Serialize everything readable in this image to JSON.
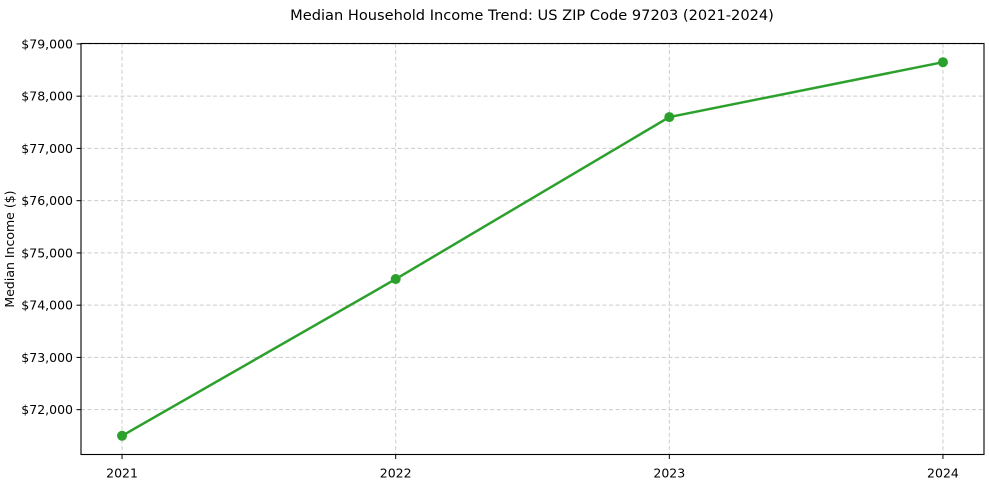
{
  "chart_data": {
    "type": "line",
    "title": "Median Household Income Trend: US ZIP Code 97203 (2021-2024)",
    "xlabel": "",
    "ylabel": "Median Income ($)",
    "x": [
      2021,
      2022,
      2023,
      2024
    ],
    "xtick_labels": [
      "2021",
      "2022",
      "2023",
      "2024"
    ],
    "values": [
      71500,
      74500,
      77600,
      78650
    ],
    "yticks": [
      72000,
      73000,
      74000,
      75000,
      76000,
      77000,
      78000,
      79000
    ],
    "ytick_labels": [
      "$72,000",
      "$73,000",
      "$74,000",
      "$75,000",
      "$76,000",
      "$77,000",
      "$78,000",
      "$79,000"
    ],
    "xlim": [
      2020.85,
      2024.15
    ],
    "ylim": [
      71142,
      79008
    ],
    "grid": true,
    "legend": "none",
    "colors": {
      "line": "#2ca02c",
      "marker": "#2ca02c",
      "grid": "#cccccc",
      "axis": "#000000",
      "text": "#000000",
      "background": "#ffffff"
    }
  }
}
